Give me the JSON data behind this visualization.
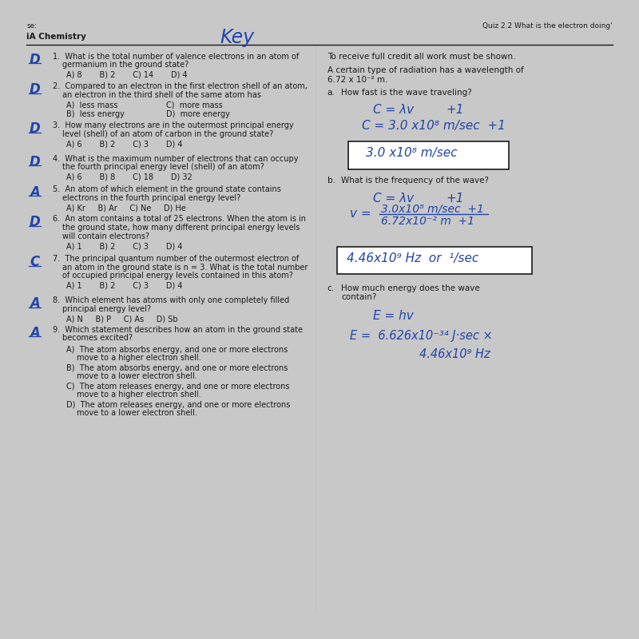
{
  "bg_color": "#c8c8c8",
  "paper_color": "#f2f0eb",
  "header_top_left": "se:",
  "header_top_right": "Quiz 2.2 What is the electron doing'",
  "header_left": "iA Chemistry",
  "header_key": "Key"
}
